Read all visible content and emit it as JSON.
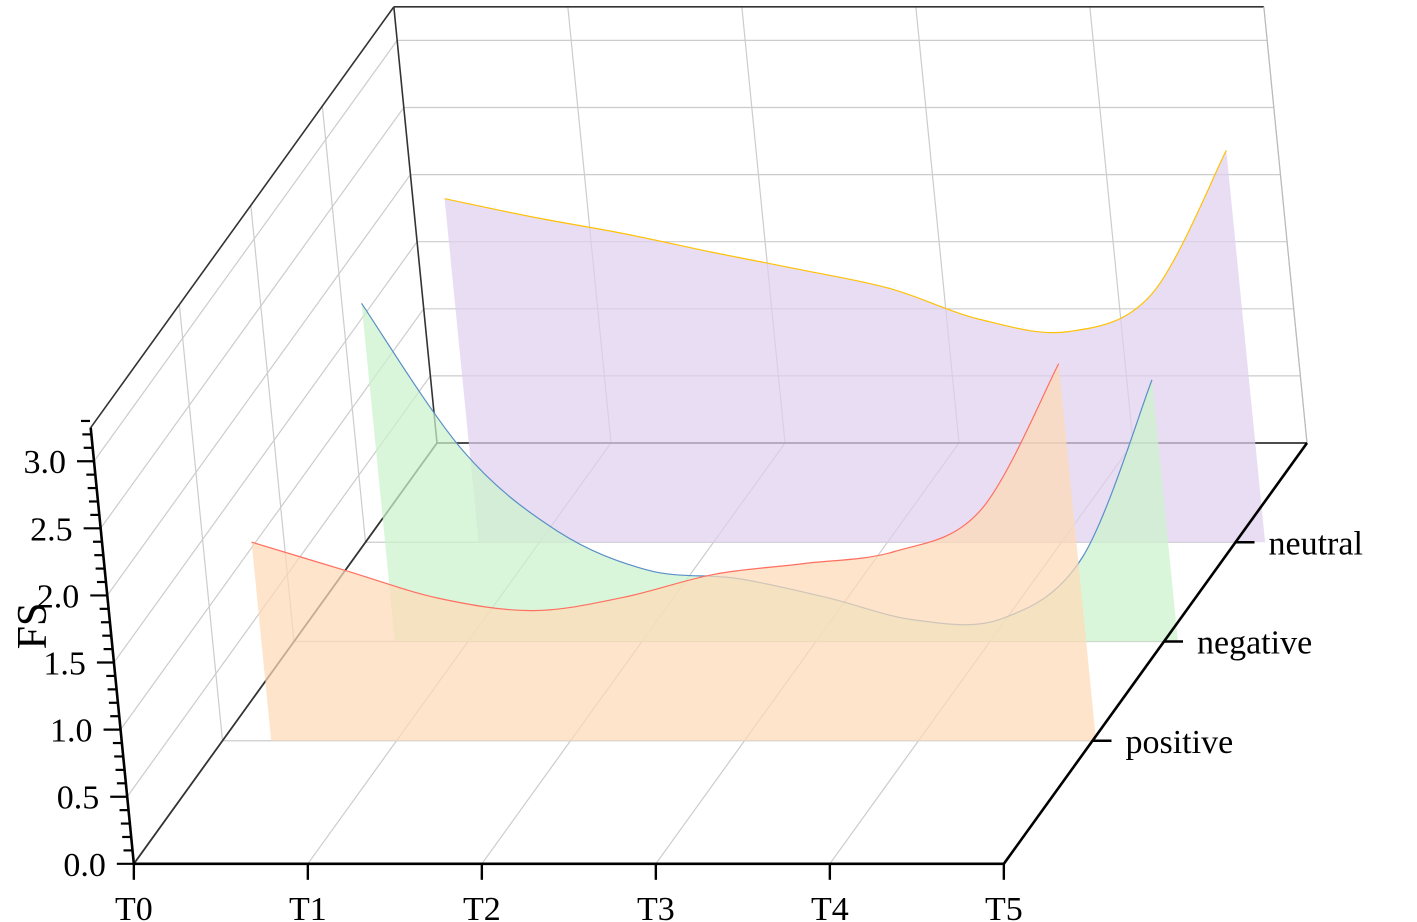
{
  "chart_data": {
    "type": "area",
    "variant": "3d-waterfall",
    "title": "",
    "xlabel": "",
    "ylabel": "",
    "zlabel": "FS",
    "x_categories": [
      "T0",
      "T1",
      "T2",
      "T3",
      "T4",
      "T5"
    ],
    "z_ticks": [
      "0.0",
      "0.5",
      "1.0",
      "1.5",
      "2.0",
      "2.5",
      "3.0"
    ],
    "zlim": [
      0,
      3.25
    ],
    "grid": true,
    "series": [
      {
        "name": "positive",
        "color": "#fdd9b5",
        "line_color": "#ff6f61",
        "x": [
          0.28,
          0.8,
          1.33,
          1.86,
          2.39,
          2.92,
          3.44,
          3.97,
          4.49,
          5.02
        ],
        "values": [
          1.48,
          1.27,
          1.06,
          0.97,
          1.07,
          1.24,
          1.32,
          1.41,
          1.72,
          2.81
        ]
      },
      {
        "name": "negative",
        "color": "#ccf2cc",
        "line_color": "#5a8fc7",
        "x": [
          0.58,
          1.08,
          1.58,
          2.08,
          2.58,
          3.08,
          3.58,
          4.08,
          4.58,
          5.08
        ],
        "values": [
          2.52,
          1.42,
          0.82,
          0.53,
          0.47,
          0.33,
          0.16,
          0.17,
          0.63,
          1.95
        ]
      },
      {
        "name": "neutral",
        "color": "#dfd0ee",
        "line_color": "#ffc107",
        "x": [
          0.65,
          1.16,
          1.66,
          2.16,
          2.66,
          3.16,
          3.66,
          4.16,
          4.66,
          5.17
        ],
        "values": [
          2.56,
          2.42,
          2.3,
          2.16,
          2.03,
          1.89,
          1.66,
          1.57,
          1.85,
          2.92
        ]
      }
    ]
  }
}
